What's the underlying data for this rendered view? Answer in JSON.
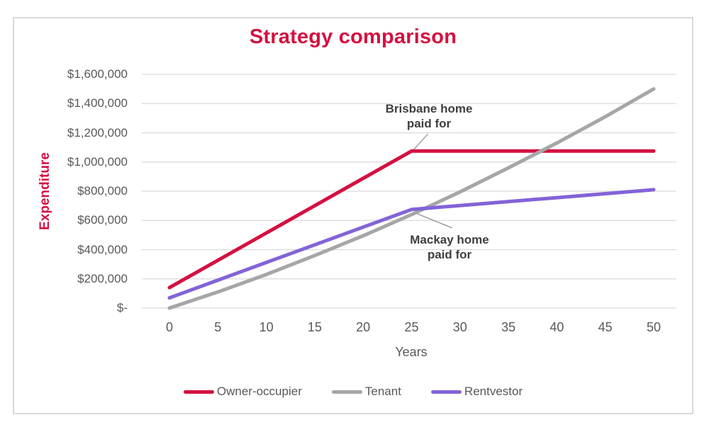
{
  "title": "Strategy comparison",
  "y_axis": {
    "label": "Expenditure",
    "tick_values": [
      0,
      200000,
      400000,
      600000,
      800000,
      1000000,
      1200000,
      1400000,
      1600000
    ],
    "tick_labels": [
      "$-",
      "$200,000",
      "$400,000",
      "$600,000",
      "$800,000",
      "$1,000,000",
      "$1,200,000",
      "$1,400,000",
      "$1,600,000"
    ]
  },
  "x_axis": {
    "label": "Years",
    "ticks": [
      0,
      5,
      10,
      15,
      20,
      25,
      30,
      35,
      40,
      45,
      50
    ]
  },
  "annotations": [
    {
      "line1": "Brisbane home",
      "line2": "paid for",
      "anchor_series": "Owner-occupier",
      "anchor_year": 25,
      "anchor_value": 1075000
    },
    {
      "line1": "Mackay home",
      "line2": "paid for",
      "anchor_series": "Rentvestor",
      "anchor_year": 25,
      "anchor_value": 675000
    }
  ],
  "legend": [
    {
      "label": "Owner-occupier",
      "color": "#d41141"
    },
    {
      "label": "Tenant",
      "color": "#a6a6a6"
    },
    {
      "label": "Rentvestor",
      "color": "#8264d7"
    }
  ],
  "colors": {
    "accent_red": "#d41141",
    "gridline": "#d9d9d9",
    "tick_text": "#595959",
    "annotation_text": "#3f3f3f",
    "leader_line": "#8c8c8c"
  },
  "chart_data": {
    "type": "line",
    "title": "Strategy comparison",
    "xlabel": "Years",
    "ylabel": "Expenditure",
    "x": [
      0,
      5,
      10,
      15,
      20,
      25,
      30,
      35,
      40,
      45,
      50
    ],
    "xlim": [
      0,
      50
    ],
    "ylim": [
      0,
      1600000
    ],
    "grid": "horizontal",
    "legend_position": "bottom",
    "series": [
      {
        "name": "Owner-occupier",
        "color": "#d41141",
        "values": [
          140000,
          327000,
          514000,
          701000,
          888000,
          1075000,
          1075000,
          1075000,
          1075000,
          1075000,
          1075000
        ]
      },
      {
        "name": "Tenant",
        "color": "#a6a6a6",
        "values": [
          0,
          110000,
          230000,
          360000,
          495000,
          640000,
          795000,
          960000,
          1130000,
          1310000,
          1500000
        ]
      },
      {
        "name": "Rentvestor",
        "color": "#8264d7",
        "values": [
          70000,
          191000,
          312000,
          433000,
          554000,
          675000,
          702000,
          729000,
          756000,
          783000,
          810000
        ]
      }
    ]
  }
}
